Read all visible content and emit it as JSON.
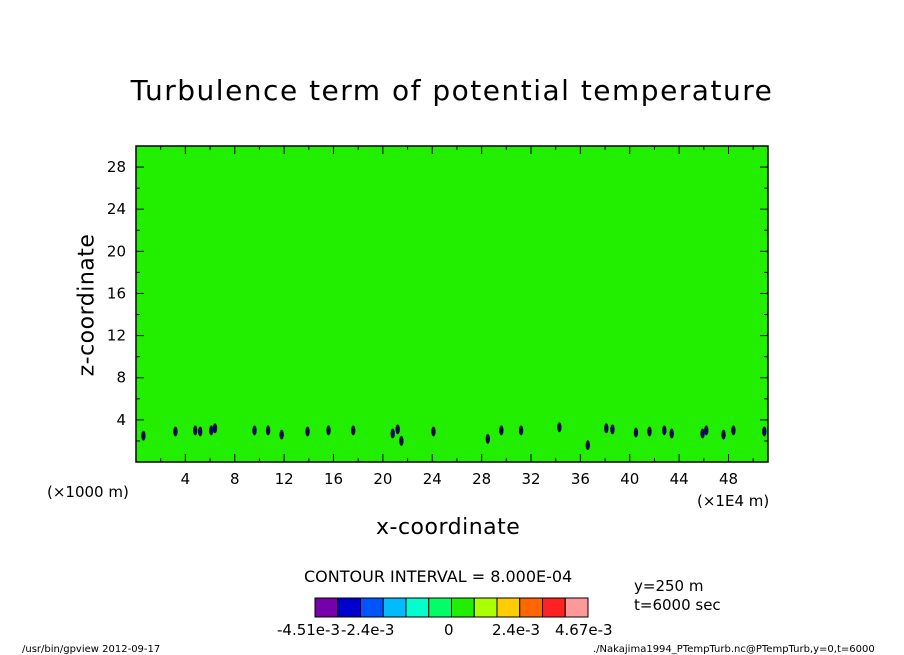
{
  "page": {
    "title": "Turbulence term of potential temperature",
    "x_unit_note": "(×1000 m)",
    "x_scale_note": "(×1E4 m)",
    "contour_interval": "CONTOUR INTERVAL = 8.000E-04",
    "y_info": "y=250 m",
    "t_info": "t=6000 sec",
    "footer_left": "/usr/bin/gpview   2012-09-17",
    "footer_right": "./Nakajima1994_PTempTurb.nc@PTempTurb,y=0,t=6000"
  },
  "chart_data": {
    "type": "heatmap",
    "title": "Turbulence term of potential temperature",
    "xlabel": "x-coordinate",
    "ylabel": "z-coordinate",
    "xlim": [
      0,
      51.2
    ],
    "ylim": [
      0,
      30
    ],
    "x_ticks": [
      4,
      8,
      12,
      16,
      20,
      24,
      28,
      32,
      36,
      40,
      44,
      48
    ],
    "y_ticks": [
      4,
      8,
      12,
      16,
      20,
      24,
      28
    ],
    "background_level_color": "#22ee00",
    "patch_color": "#000080",
    "patches": [
      [
        0.6,
        2.5
      ],
      [
        3.2,
        2.9
      ],
      [
        4.8,
        3.0
      ],
      [
        5.2,
        2.9
      ],
      [
        6.1,
        3.0
      ],
      [
        6.4,
        3.2
      ],
      [
        9.6,
        3.0
      ],
      [
        10.7,
        3.0
      ],
      [
        11.8,
        2.6
      ],
      [
        13.9,
        2.9
      ],
      [
        15.6,
        3.0
      ],
      [
        17.6,
        3.0
      ],
      [
        20.8,
        2.7
      ],
      [
        21.2,
        3.1
      ],
      [
        21.5,
        2.0
      ],
      [
        24.1,
        2.9
      ],
      [
        28.5,
        2.2
      ],
      [
        29.6,
        3.0
      ],
      [
        31.2,
        3.0
      ],
      [
        34.3,
        3.3
      ],
      [
        36.6,
        1.6
      ],
      [
        38.1,
        3.2
      ],
      [
        38.6,
        3.1
      ],
      [
        40.5,
        2.8
      ],
      [
        41.6,
        2.9
      ],
      [
        42.8,
        3.0
      ],
      [
        43.4,
        2.7
      ],
      [
        45.9,
        2.7
      ],
      [
        46.2,
        3.0
      ],
      [
        47.6,
        2.6
      ],
      [
        48.4,
        3.0
      ],
      [
        50.9,
        2.9
      ]
    ],
    "colorbar": {
      "colors": [
        "#7700aa",
        "#0000cc",
        "#0055ff",
        "#00bbff",
        "#00ffcc",
        "#00ff66",
        "#22ee00",
        "#aaff00",
        "#ffcc00",
        "#ff6600",
        "#ff2222",
        "#ff9999"
      ],
      "labels": [
        "-4.51e-3",
        "-2.4e-3",
        "0",
        "2.4e-3",
        "4.67e-3"
      ]
    }
  }
}
